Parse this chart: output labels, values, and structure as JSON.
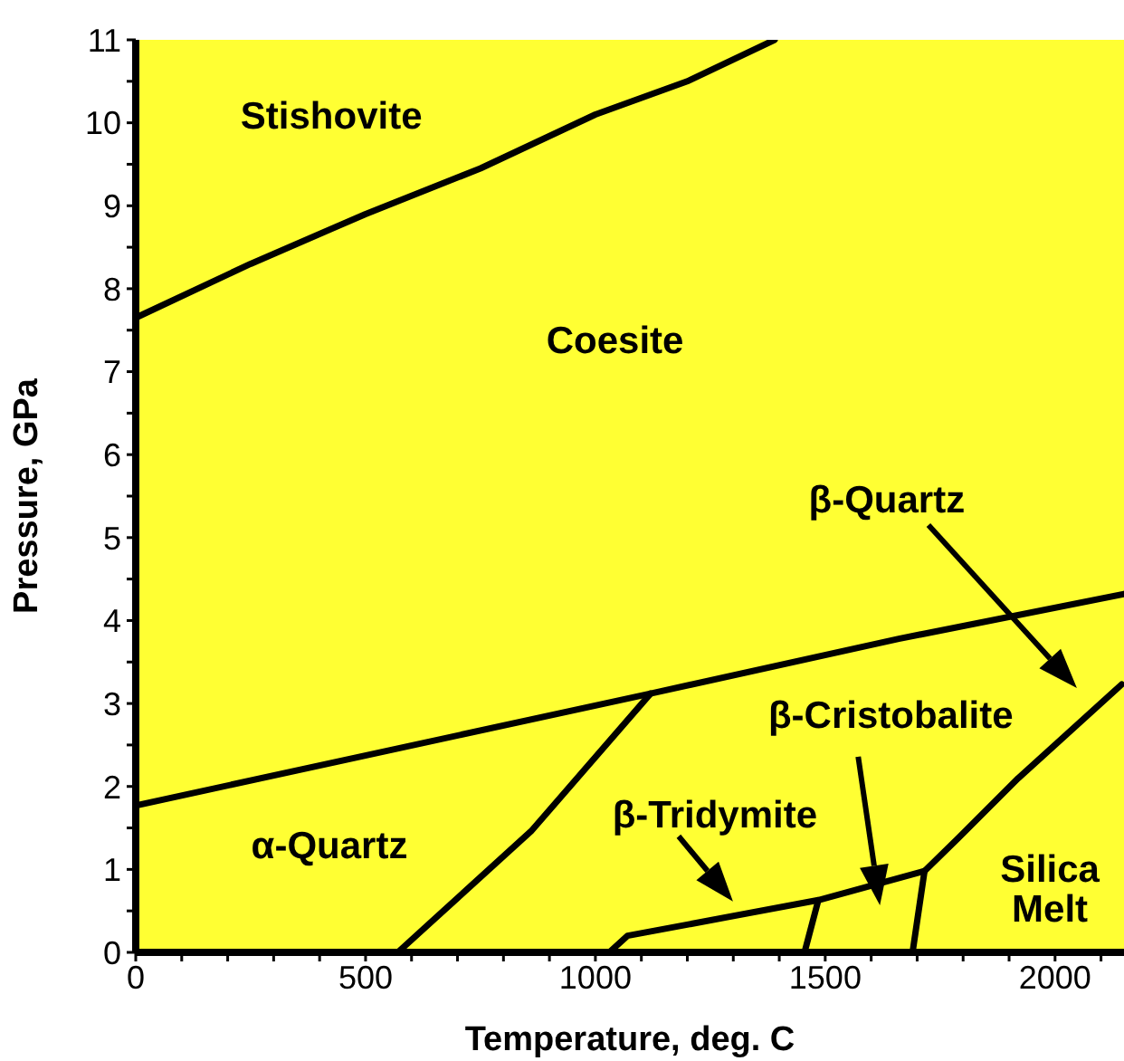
{
  "chart_data": {
    "type": "line",
    "xlabel": "Temperature, deg. C",
    "ylabel": "Pressure, GPa",
    "xlim": [
      0,
      2150
    ],
    "ylim": [
      0,
      11
    ],
    "xticks": [
      0,
      {
        "value": 100,
        "label": null
      },
      {
        "value": 200,
        "label": null
      },
      {
        "value": 300,
        "label": null
      },
      {
        "value": 400,
        "label": null
      },
      500,
      {
        "value": 600,
        "label": null
      },
      {
        "value": 700,
        "label": null
      },
      {
        "value": 800,
        "label": null
      },
      {
        "value": 900,
        "label": null
      },
      1000,
      {
        "value": 1100,
        "label": null
      },
      {
        "value": 1200,
        "label": null
      },
      {
        "value": 1300,
        "label": null
      },
      {
        "value": 1400,
        "label": null
      },
      1500,
      {
        "value": 1600,
        "label": null
      },
      {
        "value": 1700,
        "label": null
      },
      {
        "value": 1800,
        "label": null
      },
      {
        "value": 1900,
        "label": null
      },
      2000,
      {
        "value": 2100,
        "label": null
      }
    ],
    "yticks": [
      0,
      {
        "value": 0.5,
        "label": null
      },
      1,
      {
        "value": 1.5,
        "label": null
      },
      2,
      {
        "value": 2.5,
        "label": null
      },
      3,
      {
        "value": 3.5,
        "label": null
      },
      4,
      {
        "value": 4.5,
        "label": null
      },
      5,
      {
        "value": 5.5,
        "label": null
      },
      6,
      {
        "value": 6.5,
        "label": null
      },
      7,
      {
        "value": 7.5,
        "label": null
      },
      8,
      {
        "value": 8.5,
        "label": null
      },
      9,
      {
        "value": 9.5,
        "label": null
      },
      10,
      {
        "value": 10.5,
        "label": null
      },
      11
    ],
    "grid": false,
    "marker": "none",
    "line_style": "solid",
    "series": [
      {
        "color": "#000000",
        "x": [
          0,
          250,
          500,
          750,
          1000,
          1200,
          1390
        ],
        "values": [
          7.65,
          8.3,
          8.9,
          9.45,
          10.1,
          10.5,
          11
        ]
      },
      {
        "color": "#000000",
        "x": [
          0,
          1120,
          1660,
          2150
        ],
        "values": [
          1.77,
          3.12,
          3.78,
          4.32
        ]
      },
      {
        "color": "#000000",
        "x": [
          570,
          860,
          1120
        ],
        "values": [
          0,
          1.46,
          3.12
        ]
      },
      {
        "color": "#000000",
        "x": [
          1030,
          1070,
          1485,
          1716
        ],
        "values": [
          0,
          0.2,
          0.63,
          0.98
        ]
      },
      {
        "color": "#000000",
        "x": [
          1455,
          1485
        ],
        "values": [
          0,
          0.63
        ]
      },
      {
        "color": "#000000",
        "x": [
          1690,
          1716
        ],
        "values": [
          0,
          0.98
        ]
      },
      {
        "color": "#000000",
        "x": [
          1716,
          1790,
          1920,
          2145
        ],
        "values": [
          0.98,
          1.38,
          2.1,
          3.23
        ]
      }
    ],
    "annotations": [
      "Stishovite",
      "Coesite",
      "β-Quartz",
      "β-Cristobalite",
      "β-Tridymite",
      "α-Quartz",
      "Silica\nMelt"
    ]
  }
}
